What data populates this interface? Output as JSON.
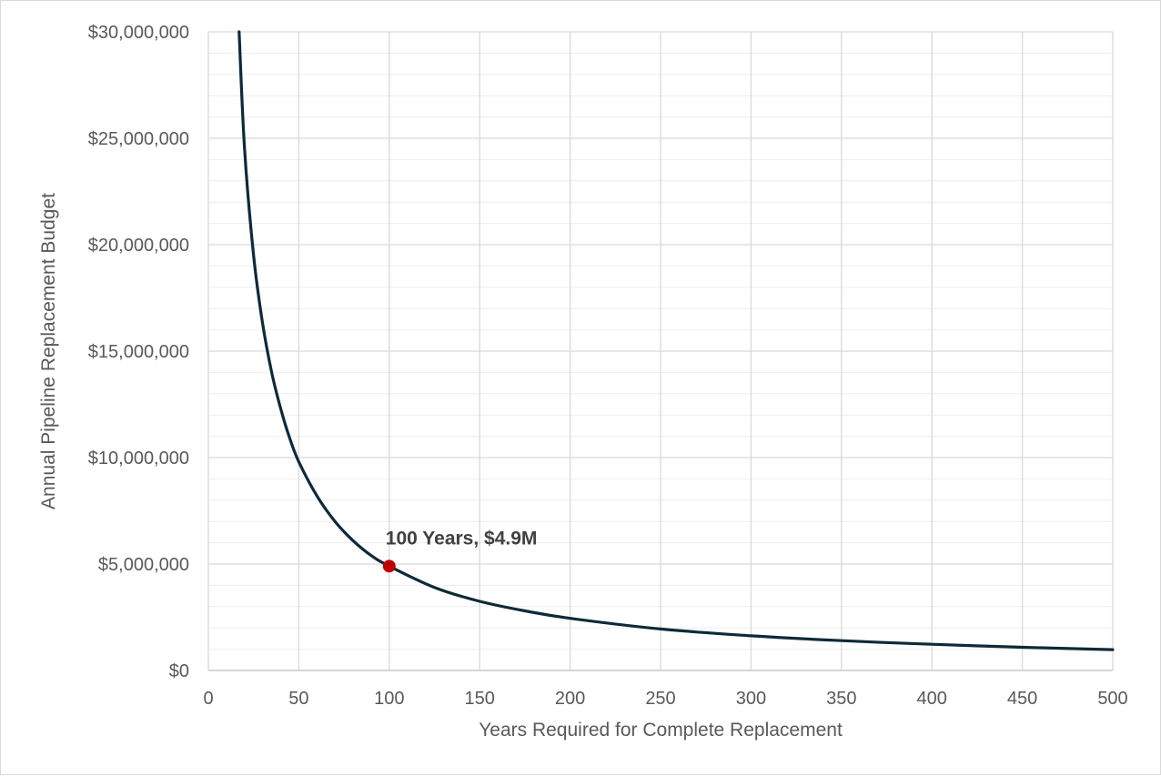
{
  "chart_data": {
    "type": "line",
    "title": "",
    "xlabel": "Years Required for Complete Replacement",
    "ylabel": "Annual Pipeline Replacement Budget",
    "xlim": [
      0,
      500
    ],
    "ylim": [
      0,
      30000000
    ],
    "x_ticks": [
      0,
      50,
      100,
      150,
      200,
      250,
      300,
      350,
      400,
      450,
      500
    ],
    "x_tick_labels": [
      "0",
      "50",
      "100",
      "150",
      "200",
      "250",
      "300",
      "350",
      "400",
      "450",
      "500"
    ],
    "y_ticks": [
      0,
      5000000,
      10000000,
      15000000,
      20000000,
      25000000,
      30000000
    ],
    "y_tick_labels": [
      "$0",
      "$5,000,000",
      "$10,000,000",
      "$15,000,000",
      "$20,000,000",
      "$25,000,000",
      "$30,000,000"
    ],
    "y_minor_step": 1000000,
    "grid": true,
    "legend": "none",
    "series": [
      {
        "x": [
          17,
          20,
          25,
          30,
          35,
          40,
          45,
          50,
          60,
          70,
          80,
          90,
          100,
          125,
          150,
          175,
          200,
          250,
          300,
          350,
          400,
          450,
          500
        ],
        "y": [
          30000000,
          24500000,
          19500000,
          16300000,
          14000000,
          12300000,
          10900000,
          9800000,
          8200000,
          7000000,
          6100000,
          5400000,
          4900000,
          3900000,
          3250000,
          2800000,
          2450000,
          1950000,
          1630000,
          1400000,
          1230000,
          1090000,
          980000
        ],
        "color": "#0e2a3a"
      }
    ],
    "highlight": {
      "x": 100,
      "y": 4900000,
      "label": "100 Years, $4.9M",
      "color": "#c00000"
    }
  }
}
